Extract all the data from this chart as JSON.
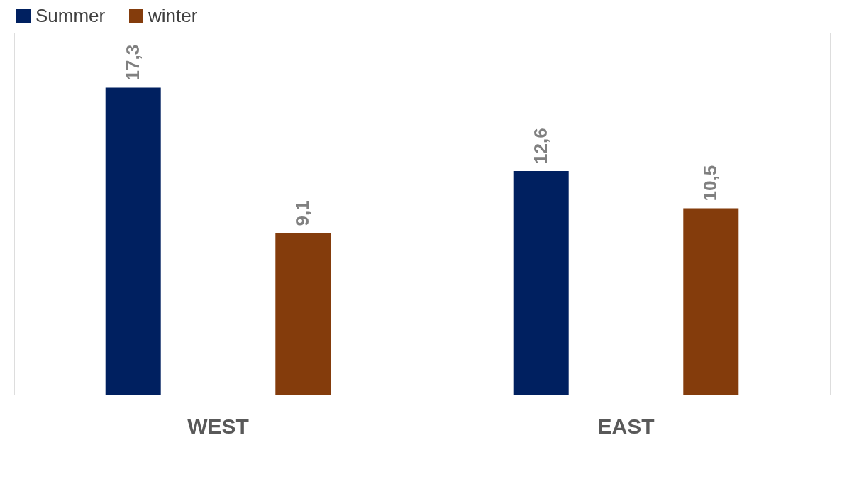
{
  "chart_data": {
    "type": "bar",
    "categories": [
      "WEST",
      "EAST"
    ],
    "series": [
      {
        "name": "Summer",
        "color": "#002060",
        "values": [
          17.3,
          12.6
        ],
        "value_labels": [
          "17,3",
          "12,6"
        ]
      },
      {
        "name": "winter",
        "color": "#843C0C",
        "values": [
          9.1,
          10.5
        ],
        "value_labels": [
          "9,1",
          "10,5"
        ]
      }
    ],
    "ylim": [
      0,
      20.4
    ],
    "tick_labels": "x",
    "legend": "top",
    "grid": false
  }
}
